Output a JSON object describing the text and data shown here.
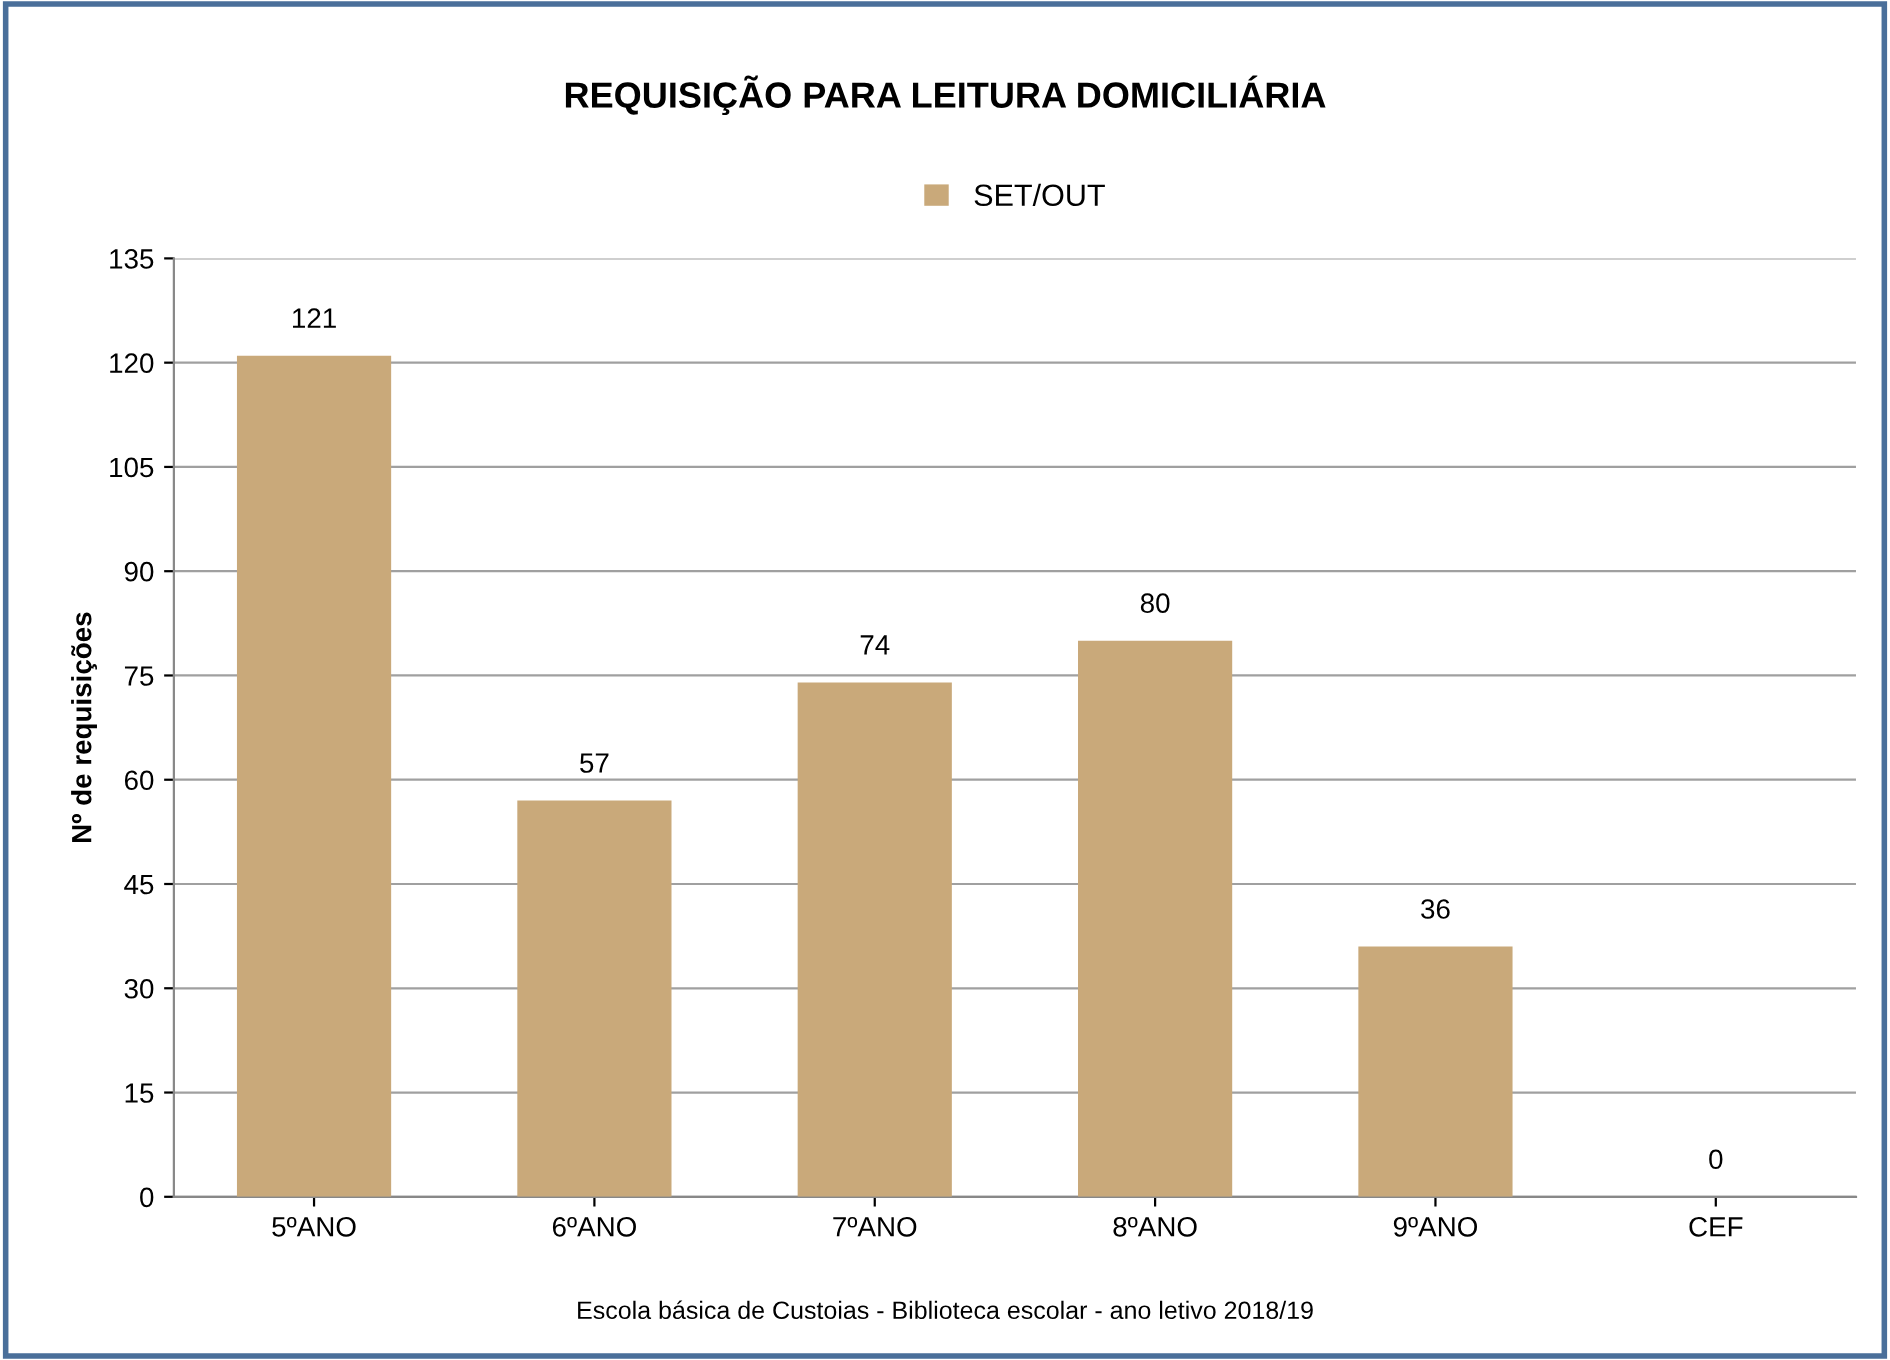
{
  "chart_data": {
    "type": "bar",
    "title": "REQUISIÇÃO PARA LEITURA DOMICILIÁRIA",
    "ylabel": "Nº de requisições",
    "categories": [
      "5ºANO",
      "6ºANO",
      "7ºANO",
      "8ºANO",
      "9ºANO",
      "CEF"
    ],
    "series": [
      {
        "name": "SET/OUT",
        "color": "#c9a97a",
        "values": [
          121,
          57,
          74,
          80,
          36,
          0
        ]
      }
    ],
    "ylim": [
      0,
      135
    ],
    "yticks": [
      0,
      15,
      30,
      45,
      60,
      75,
      90,
      105,
      120,
      135
    ],
    "grid": "y",
    "legend": "top",
    "data_labels": true,
    "annotations": [
      "Escola básica de Custoias - Biblioteca escolar - ano letivo 2018/19"
    ]
  }
}
